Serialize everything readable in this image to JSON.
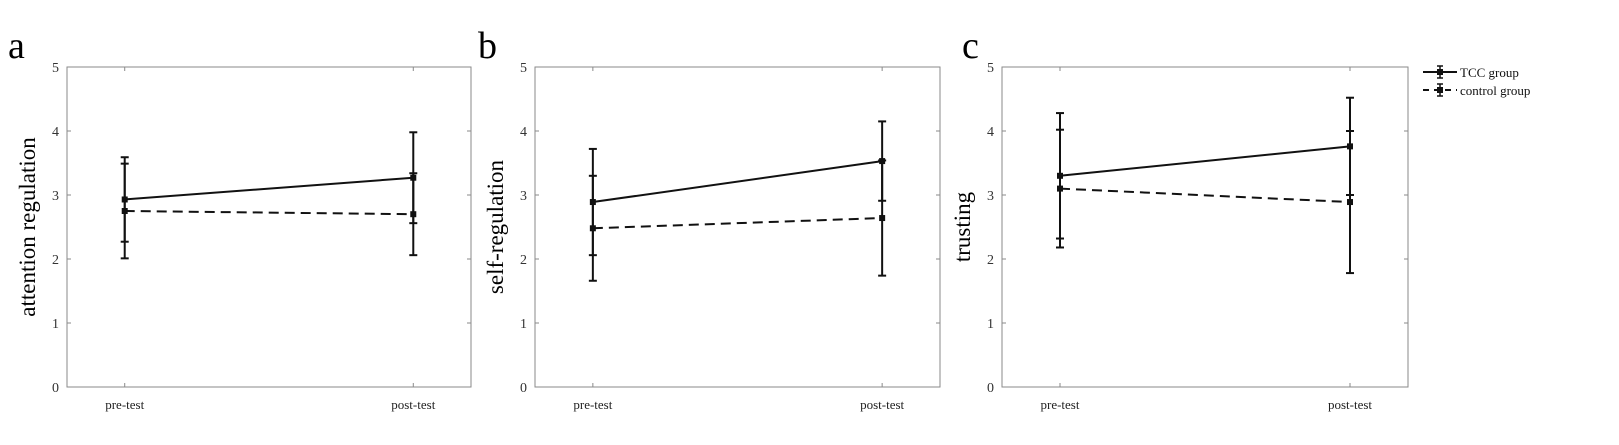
{
  "legend": {
    "placement": "top-right",
    "entries": [
      "TCC group",
      "control group"
    ]
  },
  "chart_data": [
    {
      "type": "line",
      "panel_label": "a",
      "ylabel": "attention regulation",
      "categories": [
        "pre-test",
        "post-test"
      ],
      "ylim": [
        0,
        5
      ],
      "yticks": [
        "0",
        "1",
        "2",
        "3",
        "4",
        "5"
      ],
      "series": [
        {
          "name": "TCC group",
          "style": "solid",
          "values": [
            2.93,
            3.27
          ],
          "errors": [
            0.66,
            0.71
          ]
        },
        {
          "name": "control group",
          "style": "dashed",
          "values": [
            2.75,
            2.7
          ],
          "errors": [
            0.74,
            0.64
          ]
        }
      ]
    },
    {
      "type": "line",
      "panel_label": "b",
      "ylabel": "self-regulation",
      "categories": [
        "pre-test",
        "post-test"
      ],
      "ylim": [
        0,
        5
      ],
      "yticks": [
        "0",
        "1",
        "2",
        "3",
        "4",
        "5"
      ],
      "series": [
        {
          "name": "TCC group",
          "style": "solid",
          "values": [
            2.89,
            3.53
          ],
          "errors": [
            0.83,
            0.62
          ]
        },
        {
          "name": "control group",
          "style": "dashed",
          "values": [
            2.48,
            2.64
          ],
          "errors": [
            0.82,
            0.9
          ]
        }
      ]
    },
    {
      "type": "line",
      "panel_label": "c",
      "ylabel": "trusting",
      "categories": [
        "pre-test",
        "post-test"
      ],
      "ylim": [
        0,
        5
      ],
      "yticks": [
        "0",
        "1",
        "2",
        "3",
        "4",
        "5"
      ],
      "series": [
        {
          "name": "TCC group",
          "style": "solid",
          "values": [
            3.3,
            3.76
          ],
          "errors": [
            0.98,
            0.76
          ]
        },
        {
          "name": "control group",
          "style": "dashed",
          "values": [
            3.1,
            2.89
          ],
          "errors": [
            0.92,
            1.11
          ]
        }
      ]
    }
  ]
}
